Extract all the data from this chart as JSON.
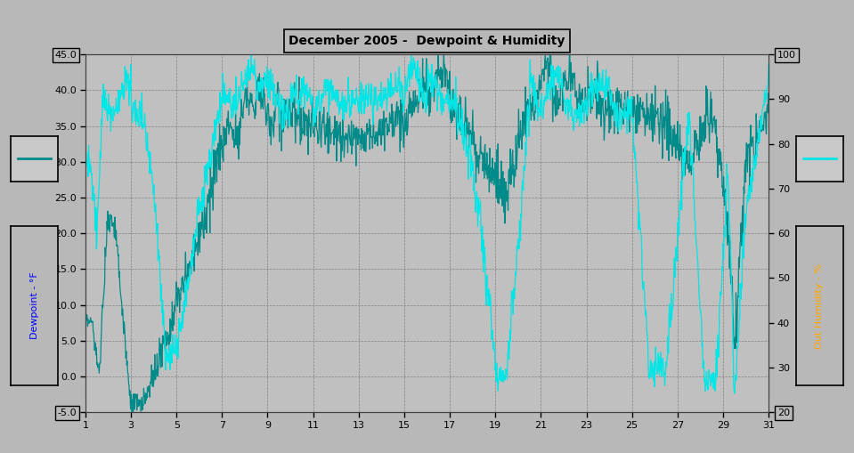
{
  "title": "December 2005 -  Dewpoint & Humidity",
  "ylabel_left": "Dewpoint - °F",
  "ylabel_right": "Out Humidity - %",
  "bg_color": "#b8b8b8",
  "plot_bg_color": "#c0c0c0",
  "grid_color": "#808080",
  "dewpoint_color": "#008B8B",
  "humidity_color": "#00E5E5",
  "ylim_left": [
    -5.0,
    45.0
  ],
  "ylim_right": [
    20,
    100
  ],
  "xlim": [
    1,
    31
  ],
  "yticks_left": [
    -5.0,
    0.0,
    5.0,
    10.0,
    15.0,
    20.0,
    25.0,
    30.0,
    35.0,
    40.0,
    45.0
  ],
  "yticks_right": [
    20,
    30,
    40,
    50,
    60,
    70,
    80,
    90,
    100
  ],
  "xticks": [
    1,
    3,
    5,
    7,
    9,
    11,
    13,
    15,
    17,
    19,
    21,
    23,
    25,
    27,
    29,
    31
  ]
}
